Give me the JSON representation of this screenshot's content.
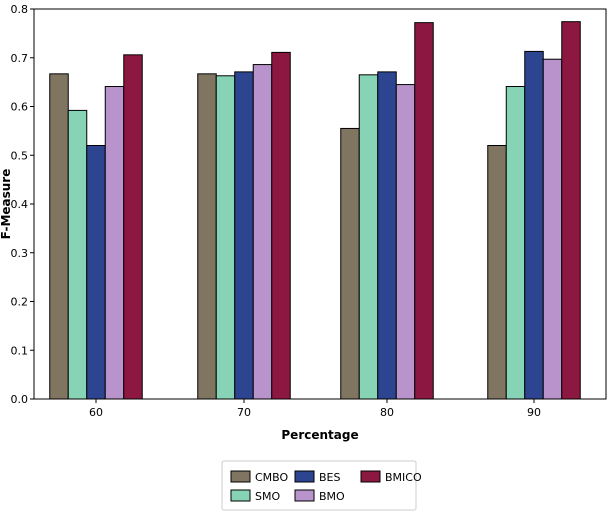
{
  "chart_data": {
    "type": "bar",
    "xlabel": "Percentage",
    "ylabel": "F-Measure",
    "categories": [
      "60",
      "70",
      "80",
      "90"
    ],
    "ylim": [
      0,
      0.8
    ],
    "yticks": [
      "0.0",
      "0.1",
      "0.2",
      "0.3",
      "0.4",
      "0.5",
      "0.6",
      "0.7",
      "0.8"
    ],
    "grid": false,
    "legend_position": "bottom-center",
    "series": [
      {
        "name": "CMBO",
        "color": "#7f7560",
        "values": [
          0.667,
          0.667,
          0.555,
          0.52
        ]
      },
      {
        "name": "SMO",
        "color": "#86d3b6",
        "values": [
          0.592,
          0.663,
          0.665,
          0.641
        ]
      },
      {
        "name": "BES",
        "color": "#2d4591",
        "values": [
          0.52,
          0.671,
          0.671,
          0.713
        ]
      },
      {
        "name": "BMO",
        "color": "#b994cc",
        "values": [
          0.641,
          0.686,
          0.645,
          0.697
        ]
      },
      {
        "name": "BMICO",
        "color": "#8c1741",
        "values": [
          0.706,
          0.711,
          0.772,
          0.774
        ]
      }
    ]
  }
}
